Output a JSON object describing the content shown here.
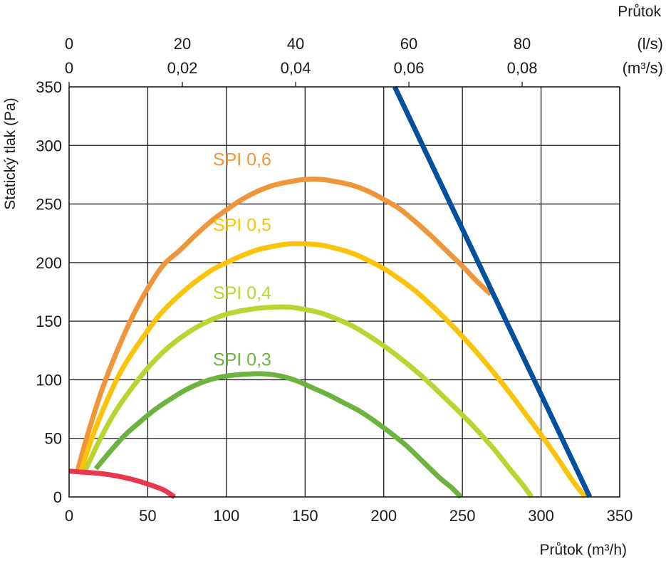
{
  "chart_data": {
    "type": "line",
    "xlabel": "Průtok (m³/h)",
    "ylabel": "Statický tlak (Pa)",
    "xlim": [
      0,
      350
    ],
    "ylim": [
      0,
      350
    ],
    "x_ticks": [
      0,
      50,
      100,
      150,
      200,
      250,
      300,
      350
    ],
    "y_ticks": [
      0,
      50,
      100,
      150,
      200,
      250,
      300,
      350
    ],
    "grid": true,
    "secondary_x_axis": {
      "title": "Průtok",
      "row_ls": {
        "unit": "(l/s)",
        "ticks": [
          {
            "label": "0",
            "value_m3h": 0
          },
          {
            "label": "20",
            "value_m3h": 72
          },
          {
            "label": "40",
            "value_m3h": 144
          },
          {
            "label": "60",
            "value_m3h": 216
          },
          {
            "label": "80",
            "value_m3h": 288
          }
        ]
      },
      "row_m3s": {
        "unit": "(m³/s)",
        "ticks": [
          {
            "label": "0",
            "value_m3h": 0
          },
          {
            "label": "0,02",
            "value_m3h": 72
          },
          {
            "label": "0,04",
            "value_m3h": 144
          },
          {
            "label": "0,06",
            "value_m3h": 216
          },
          {
            "label": "0,08",
            "value_m3h": 288
          }
        ]
      }
    },
    "series": [
      {
        "name": "SPI 0,6",
        "color": "#f0963a",
        "label_at": [
          110,
          283
        ],
        "x": [
          5,
          10,
          20,
          30,
          40,
          50,
          60,
          70,
          80,
          90,
          100,
          110,
          120,
          130,
          140,
          150,
          160,
          170,
          180,
          190,
          200,
          210,
          220,
          230,
          240,
          250,
          260,
          268
        ],
        "y": [
          20,
          45,
          88,
          123,
          153,
          178,
          198,
          210,
          223,
          235,
          245,
          254,
          261,
          266,
          269,
          271,
          271,
          269,
          266,
          261,
          254,
          246,
          235,
          223,
          210,
          197,
          183,
          173
        ]
      },
      {
        "name": "SPI 0,5",
        "color": "#fcc30b",
        "label_at": [
          110,
          227
        ],
        "x": [
          7,
          15,
          25,
          35,
          50,
          60,
          75,
          90,
          100,
          110,
          120,
          130,
          140,
          150,
          160,
          170,
          180,
          190,
          200,
          210,
          220,
          230,
          240,
          250,
          260,
          270,
          280,
          290,
          300,
          310,
          320,
          328
        ],
        "y": [
          20,
          52,
          85,
          112,
          142,
          159,
          178,
          193,
          200,
          206,
          211,
          214,
          216,
          216,
          215,
          212,
          208,
          202,
          195,
          186,
          176,
          164,
          151,
          137,
          122,
          106,
          89,
          71,
          53,
          34,
          14,
          0
        ]
      },
      {
        "name": "SPI 0,4",
        "color": "#b9d531",
        "label_at": [
          110,
          169
        ],
        "x": [
          10,
          20,
          30,
          40,
          50,
          60,
          70,
          80,
          90,
          100,
          110,
          120,
          130,
          140,
          150,
          160,
          170,
          180,
          190,
          200,
          210,
          220,
          230,
          240,
          250,
          260,
          270,
          280,
          288,
          294
        ],
        "y": [
          22,
          50,
          74,
          93,
          110,
          124,
          135,
          144,
          151,
          156,
          159,
          161,
          162,
          162,
          160,
          157,
          152,
          146,
          138,
          129,
          119,
          108,
          96,
          83,
          70,
          56,
          41,
          24,
          11,
          0
        ]
      },
      {
        "name": "SPI 0,3",
        "color": "#6cb33f",
        "label_at": [
          110,
          112
        ],
        "x": [
          17,
          25,
          35,
          45,
          55,
          65,
          75,
          85,
          95,
          105,
          115,
          125,
          135,
          145,
          155,
          165,
          175,
          185,
          195,
          205,
          215,
          225,
          235,
          243,
          249
        ],
        "y": [
          24,
          37,
          52,
          64,
          75,
          84,
          92,
          98,
          102,
          104,
          105,
          105,
          103,
          99,
          93,
          87,
          80,
          73,
          64,
          54,
          43,
          30,
          17,
          8,
          0
        ]
      },
      {
        "name": "",
        "color": "#e8374f",
        "x": [
          0,
          10,
          20,
          30,
          40,
          50,
          60,
          67
        ],
        "y": [
          22,
          21,
          20,
          18,
          15,
          11,
          6,
          0
        ]
      },
      {
        "name": "",
        "color": "#00509e",
        "x": [
          207,
          331
        ],
        "y": [
          350,
          0
        ]
      }
    ]
  }
}
